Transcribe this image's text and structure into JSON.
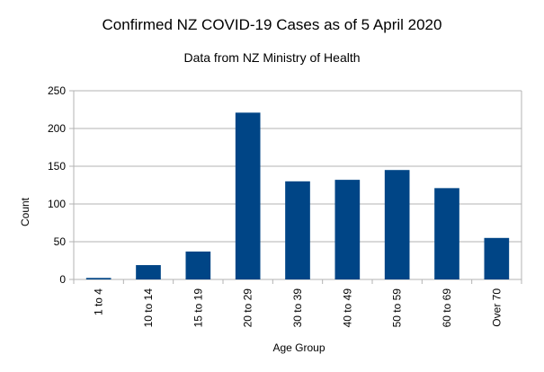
{
  "chart_data": {
    "type": "bar",
    "title": "Confirmed NZ COVID-19 Cases as of 5 April 2020",
    "subtitle": "Data from NZ Ministry of Health",
    "xlabel": "Age Group",
    "ylabel": "Count",
    "categories": [
      "1 to 4",
      "10 to 14",
      "15 to 19",
      "20 to 29",
      "30 to 39",
      "40 to 49",
      "50 to 59",
      "60 to 69",
      "Over 70"
    ],
    "values": [
      2,
      19,
      37,
      221,
      130,
      132,
      145,
      121,
      55
    ],
    "ylim": [
      0,
      250
    ],
    "yticks": [
      0,
      50,
      100,
      150,
      200,
      250
    ],
    "grid": true,
    "legend": "none",
    "bar_color": "#004586",
    "grid_color": "#b3b3b3"
  }
}
